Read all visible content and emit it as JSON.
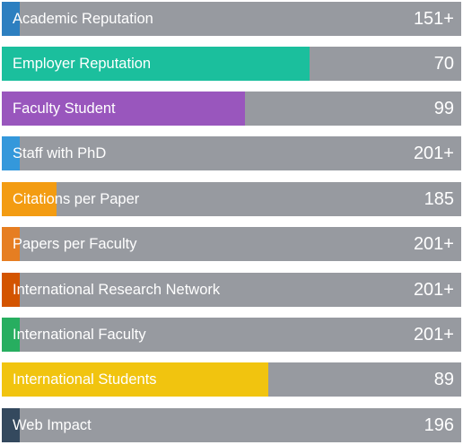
{
  "rankings": [
    {
      "label": "Academic Reputation",
      "value": "151+",
      "fill_fraction": 0.04,
      "color": "#2d7fc0"
    },
    {
      "label": "Employer Reputation",
      "value": "70",
      "fill_fraction": 0.67,
      "color": "#1bbf9d"
    },
    {
      "label": "Faculty Student",
      "value": "99",
      "fill_fraction": 0.53,
      "color": "#9956bd"
    },
    {
      "label": "Staff with PhD",
      "value": "201+",
      "fill_fraction": 0.04,
      "color": "#3498db"
    },
    {
      "label": "Citations per Paper",
      "value": "185",
      "fill_fraction": 0.12,
      "color": "#f39c12"
    },
    {
      "label": "Papers per Faculty",
      "value": "201+",
      "fill_fraction": 0.04,
      "color": "#e67e22"
    },
    {
      "label": "International Research Network",
      "value": "201+",
      "fill_fraction": 0.04,
      "color": "#d35400"
    },
    {
      "label": "International Faculty",
      "value": "201+",
      "fill_fraction": 0.04,
      "color": "#27ae60"
    },
    {
      "label": "International Students",
      "value": "89",
      "fill_fraction": 0.58,
      "color": "#f1c40f"
    },
    {
      "label": "Web Impact",
      "value": "196",
      "fill_fraction": 0.04,
      "color": "#34495e"
    }
  ]
}
